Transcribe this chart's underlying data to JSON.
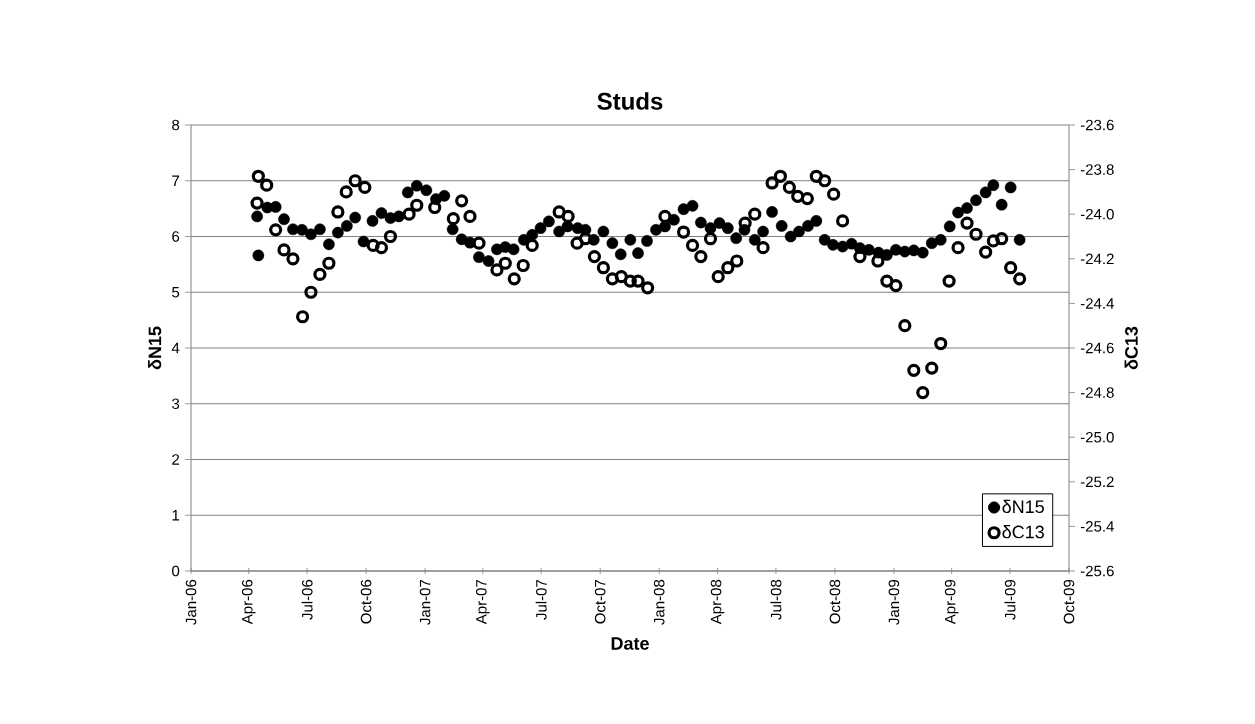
{
  "chart_data": {
    "type": "scatter",
    "title": "Studs",
    "xlabel": "Date",
    "ylabel": "δN15",
    "y2label": "δC13",
    "xlim": [
      "2006-01-01",
      "2009-10-01"
    ],
    "xticks": [
      {
        "value": "2006-01-01",
        "label": "Jan-06"
      },
      {
        "value": "2006-04-01",
        "label": "Apr-06"
      },
      {
        "value": "2006-07-01",
        "label": "Jul-06"
      },
      {
        "value": "2006-10-01",
        "label": "Oct-06"
      },
      {
        "value": "2007-01-01",
        "label": "Jan-07"
      },
      {
        "value": "2007-04-01",
        "label": "Apr-07"
      },
      {
        "value": "2007-07-01",
        "label": "Jul-07"
      },
      {
        "value": "2007-10-01",
        "label": "Oct-07"
      },
      {
        "value": "2008-01-01",
        "label": "Jan-08"
      },
      {
        "value": "2008-04-01",
        "label": "Apr-08"
      },
      {
        "value": "2008-07-01",
        "label": "Jul-08"
      },
      {
        "value": "2008-10-01",
        "label": "Oct-08"
      },
      {
        "value": "2009-01-01",
        "label": "Jan-09"
      },
      {
        "value": "2009-04-01",
        "label": "Apr-09"
      },
      {
        "value": "2009-07-01",
        "label": "Jul-09"
      },
      {
        "value": "2009-10-01",
        "label": "Oct-09"
      }
    ],
    "ylim": [
      0,
      8
    ],
    "yticks": [
      0,
      1,
      2,
      3,
      4,
      5,
      6,
      7,
      8
    ],
    "y2lim": [
      -25.6,
      -23.6
    ],
    "y2ticks": [
      -25.6,
      -25.4,
      -25.2,
      {
        "value": -25,
        "label": "-25.0"
      },
      -24.8,
      -24.6,
      -24.4,
      -24.2,
      {
        "value": -24,
        "label": "-24.0"
      },
      -23.8,
      -23.6
    ],
    "grid": "y",
    "legend": "bottom right",
    "marker": "circle",
    "series": [
      {
        "name": "δN15",
        "color": "#000000",
        "x": [
          "2006-04-14",
          "2006-04-16",
          "2006-04-30",
          "2006-05-13",
          "2006-05-26",
          "2006-06-09",
          "2006-06-23",
          "2006-07-07",
          "2006-07-21",
          "2006-08-04",
          "2006-08-18",
          "2006-09-01",
          "2006-09-14",
          "2006-09-27",
          "2006-10-11",
          "2006-10-25",
          "2006-11-08",
          "2006-11-21",
          "2006-12-05",
          "2006-12-19",
          "2007-01-03",
          "2007-01-18",
          "2007-01-31",
          "2007-02-13",
          "2007-02-27",
          "2007-03-12",
          "2007-03-26",
          "2007-04-10",
          "2007-04-23",
          "2007-05-06",
          "2007-05-19",
          "2007-06-04",
          "2007-06-17",
          "2007-06-30",
          "2007-07-13",
          "2007-07-29",
          "2007-08-11",
          "2007-08-27",
          "2007-09-08",
          "2007-09-21",
          "2007-10-06",
          "2007-10-20",
          "2007-11-02",
          "2007-11-17",
          "2007-11-29",
          "2007-12-13",
          "2007-12-27",
          "2008-01-10",
          "2008-01-24",
          "2008-02-08",
          "2008-02-22",
          "2008-03-06",
          "2008-03-21",
          "2008-04-04",
          "2008-04-17",
          "2008-04-30",
          "2008-05-13",
          "2008-05-29",
          "2008-06-11",
          "2008-06-25",
          "2008-07-10",
          "2008-07-24",
          "2008-08-06",
          "2008-08-20",
          "2008-09-02",
          "2008-09-15",
          "2008-09-28",
          "2008-10-13",
          "2008-10-27",
          "2008-11-09",
          "2008-11-23",
          "2008-12-08",
          "2008-12-21",
          "2009-01-04",
          "2009-01-18",
          "2009-02-01",
          "2009-02-15",
          "2009-03-01",
          "2009-03-15",
          "2009-03-29",
          "2009-04-11",
          "2009-04-25",
          "2009-05-09",
          "2009-05-24",
          "2009-06-05",
          "2009-06-18",
          "2009-07-02",
          "2009-07-16"
        ],
        "values": [
          6.36,
          5.66,
          6.52,
          6.53,
          6.31,
          6.13,
          6.12,
          6.04,
          6.13,
          5.86,
          6.07,
          6.19,
          6.34,
          5.91,
          6.28,
          6.42,
          6.33,
          6.36,
          6.79,
          6.91,
          6.83,
          6.67,
          6.73,
          6.13,
          5.95,
          5.89,
          5.63,
          5.56,
          5.77,
          5.81,
          5.77,
          5.94,
          6.03,
          6.15,
          6.27,
          6.09,
          6.18,
          6.15,
          6.12,
          5.94,
          6.09,
          5.88,
          5.68,
          5.94,
          5.7,
          5.92,
          6.12,
          6.18,
          6.3,
          6.49,
          6.55,
          6.25,
          6.15,
          6.24,
          6.15,
          5.97,
          6.12,
          5.94,
          6.09,
          6.44,
          6.19,
          6,
          6.09,
          6.19,
          6.28,
          5.94,
          5.85,
          5.82,
          5.87,
          5.79,
          5.76,
          5.71,
          5.67,
          5.76,
          5.73,
          5.75,
          5.71,
          5.88,
          5.94,
          6.18,
          6.43,
          6.51,
          6.65,
          6.79,
          6.92,
          6.57,
          6.88,
          5.94
        ]
      },
      {
        "name": "δC13",
        "color": "#000000",
        "axis": "y2",
        "x": [
          "2006-04-14",
          "2006-04-16",
          "2006-04-29",
          "2006-05-13",
          "2006-05-26",
          "2006-06-09",
          "2006-06-24",
          "2006-07-07",
          "2006-07-21",
          "2006-08-04",
          "2006-08-18",
          "2006-08-31",
          "2006-09-14",
          "2006-09-29",
          "2006-10-12",
          "2006-10-25",
          "2006-11-08",
          "2006-12-07",
          "2006-12-19",
          "2007-01-16",
          "2007-02-14",
          "2007-02-27",
          "2007-03-12",
          "2007-03-26",
          "2007-04-23",
          "2007-05-06",
          "2007-05-20",
          "2007-06-03",
          "2007-06-17",
          "2007-07-29",
          "2007-08-12",
          "2007-08-26",
          "2007-09-08",
          "2007-09-22",
          "2007-10-06",
          "2007-10-20",
          "2007-11-03",
          "2007-11-17",
          "2007-11-29",
          "2007-12-14",
          "2008-01-10",
          "2008-02-08",
          "2008-02-22",
          "2008-03-06",
          "2008-03-21",
          "2008-04-02",
          "2008-04-17",
          "2008-05-01",
          "2008-05-14",
          "2008-05-29",
          "2008-06-11",
          "2008-06-25",
          "2008-07-08",
          "2008-07-22",
          "2008-08-04",
          "2008-08-19",
          "2008-09-02",
          "2008-09-15",
          "2008-09-29",
          "2008-10-13",
          "2008-11-09",
          "2008-12-07",
          "2008-12-21",
          "2009-01-04",
          "2009-01-18",
          "2009-02-01",
          "2009-02-15",
          "2009-03-01",
          "2009-03-15",
          "2009-03-28",
          "2009-04-11",
          "2009-04-25",
          "2009-05-09",
          "2009-05-24",
          "2009-06-05",
          "2009-06-18",
          "2009-07-02",
          "2009-07-16"
        ],
        "values": [
          -23.95,
          -23.83,
          -23.87,
          -24.07,
          -24.16,
          -24.2,
          -24.46,
          -24.35,
          -24.27,
          -24.22,
          -23.99,
          -23.9,
          -23.85,
          -23.88,
          -24.14,
          -24.15,
          -24.1,
          -24,
          -23.96,
          -23.97,
          -24.02,
          -23.94,
          -24.01,
          -24.13,
          -24.25,
          -24.22,
          -24.29,
          -24.23,
          -24.14,
          -23.99,
          -24.01,
          -24.13,
          -24.11,
          -24.19,
          -24.24,
          -24.29,
          -24.28,
          -24.3,
          -24.3,
          -24.33,
          -24.01,
          -24.08,
          -24.14,
          -24.19,
          -24.11,
          -24.28,
          -24.24,
          -24.21,
          -24.04,
          -24,
          -24.15,
          -23.86,
          -23.83,
          -23.88,
          -23.92,
          -23.93,
          -23.83,
          -23.85,
          -23.91,
          -24.03,
          -24.19,
          -24.21,
          -24.3,
          -24.32,
          -24.5,
          -24.7,
          -24.8,
          -24.69,
          -24.58,
          -24.3,
          -24.15,
          -24.04,
          -24.09,
          -24.17,
          -24.12,
          -24.11,
          -24.24,
          -24.29
        ]
      }
    ]
  }
}
